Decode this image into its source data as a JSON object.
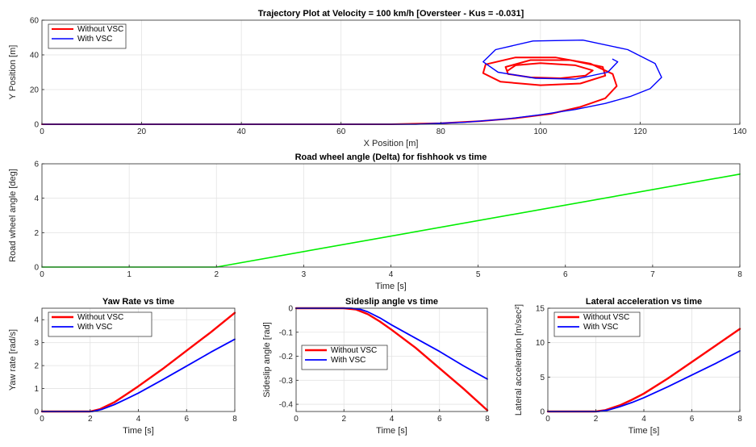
{
  "chart_data": [
    {
      "id": "traj",
      "type": "line",
      "title": "Trajectory Plot at Velocity = 100 km/h [Oversteer - Kus = -0.031]",
      "xlabel": "X Position [m]",
      "ylabel": "Y Position [m]",
      "xlim": [
        0,
        140
      ],
      "ylim": [
        0,
        60
      ],
      "xticks": [
        0,
        20,
        40,
        60,
        80,
        100,
        120,
        140
      ],
      "yticks": [
        0,
        20,
        40,
        60
      ],
      "grid": true,
      "legend": {
        "position": "top-left",
        "box": true
      },
      "series": [
        {
          "name": "Without VSC",
          "color": "#ff0000",
          "points": [
            [
              0,
              0
            ],
            [
              70,
              0
            ],
            [
              80,
              0.6
            ],
            [
              88,
              1.8
            ],
            [
              95,
              3.5
            ],
            [
              102,
              6
            ],
            [
              108,
              10
            ],
            [
              113,
              15
            ],
            [
              115.3,
              22
            ],
            [
              114.5,
              29
            ],
            [
              110,
              35
            ],
            [
              103,
              38.5
            ],
            [
              95,
              38.5
            ],
            [
              89,
              34.5
            ],
            [
              88.5,
              29.5
            ],
            [
              92,
              24.5
            ],
            [
              100,
              22.5
            ],
            [
              108,
              23.5
            ],
            [
              113,
              28
            ],
            [
              112.5,
              33
            ],
            [
              106,
              37
            ],
            [
              98,
              37
            ],
            [
              93,
              33
            ],
            [
              93.5,
              29
            ],
            [
              98,
              27
            ],
            [
              104,
              26.5
            ],
            [
              109,
              28
            ],
            [
              110.5,
              31
            ],
            [
              107,
              34
            ],
            [
              100,
              35.2
            ],
            [
              95,
              34
            ],
            [
              93.5,
              31
            ]
          ]
        },
        {
          "name": "With VSC",
          "color": "#0000ff",
          "points": [
            [
              0,
              0
            ],
            [
              75,
              0
            ],
            [
              85,
              1.2
            ],
            [
              93,
              3
            ],
            [
              100,
              5.5
            ],
            [
              107,
              8.5
            ],
            [
              113,
              12
            ],
            [
              118,
              16
            ],
            [
              122,
              20.5
            ],
            [
              124.3,
              27
            ],
            [
              123,
              35
            ],
            [
              117.5,
              43
            ],
            [
              108.5,
              48.5
            ],
            [
              98.5,
              48
            ],
            [
              91,
              43
            ],
            [
              88.5,
              36
            ],
            [
              91.5,
              30
            ],
            [
              99,
              26.5
            ],
            [
              107,
              26
            ],
            [
              113.5,
              30
            ],
            [
              115.5,
              36
            ],
            [
              114.5,
              37.5
            ]
          ]
        }
      ]
    },
    {
      "id": "delta",
      "type": "line",
      "title": "Road wheel angle (Delta) for fishhook vs time",
      "xlabel": "Time [s]",
      "ylabel": "Road wheel angle [deg]",
      "xlim": [
        0,
        8
      ],
      "ylim": [
        0,
        6
      ],
      "xticks": [
        0,
        1,
        2,
        3,
        4,
        5,
        6,
        7,
        8
      ],
      "yticks": [
        0,
        2,
        4,
        6
      ],
      "grid": true,
      "series": [
        {
          "color": "#00ee00",
          "points": [
            [
              0,
              0
            ],
            [
              2,
              0
            ],
            [
              8,
              5.4
            ]
          ]
        }
      ]
    },
    {
      "id": "yaw",
      "type": "line",
      "title": "Yaw Rate vs time",
      "xlabel": "Time [s]",
      "ylabel": "Yaw rate [rad/s]",
      "xlim": [
        0,
        8
      ],
      "ylim": [
        0,
        4.5
      ],
      "xticks": [
        0,
        2,
        4,
        6,
        8
      ],
      "yticks": [
        0,
        1,
        2,
        3,
        4
      ],
      "grid": true,
      "legend": {
        "position": "top-left",
        "box": true
      },
      "series": [
        {
          "name": "Without VSC",
          "color": "#ff0000",
          "points": [
            [
              0,
              0
            ],
            [
              2,
              0
            ],
            [
              2.4,
              0.1
            ],
            [
              3,
              0.4
            ],
            [
              3.5,
              0.75
            ],
            [
              4,
              1.1
            ],
            [
              5,
              1.85
            ],
            [
              6,
              2.65
            ],
            [
              7,
              3.45
            ],
            [
              8,
              4.3
            ]
          ]
        },
        {
          "name": "With VSC",
          "color": "#0000ff",
          "points": [
            [
              0,
              0
            ],
            [
              2.1,
              0
            ],
            [
              2.5,
              0.1
            ],
            [
              3,
              0.3
            ],
            [
              3.5,
              0.55
            ],
            [
              4,
              0.8
            ],
            [
              5,
              1.38
            ],
            [
              6,
              1.98
            ],
            [
              7,
              2.58
            ],
            [
              8,
              3.15
            ]
          ]
        }
      ]
    },
    {
      "id": "sideslip",
      "type": "line",
      "title": "Sideslip angle vs time",
      "xlabel": "Time [s]",
      "ylabel": "Sideslip angle [rad]",
      "xlim": [
        0,
        8
      ],
      "ylim": [
        -0.43,
        0
      ],
      "xticks": [
        0,
        2,
        4,
        6,
        8
      ],
      "yticks": [
        0,
        -0.1,
        -0.2,
        -0.3,
        -0.4
      ],
      "ytickLabels": [
        "0",
        "-0.1",
        "-0.2",
        "-0.3",
        "-0.4"
      ],
      "grid": true,
      "legend": {
        "position": "bottom-left",
        "box": true
      },
      "series": [
        {
          "name": "Without VSC",
          "color": "#ff0000",
          "points": [
            [
              0,
              0
            ],
            [
              2,
              0
            ],
            [
              2.5,
              -0.005
            ],
            [
              3,
              -0.025
            ],
            [
              3.5,
              -0.055
            ],
            [
              4,
              -0.09
            ],
            [
              5,
              -0.165
            ],
            [
              6,
              -0.25
            ],
            [
              7,
              -0.335
            ],
            [
              8,
              -0.425
            ]
          ]
        },
        {
          "name": "With VSC",
          "color": "#0000ff",
          "points": [
            [
              0,
              0
            ],
            [
              2.3,
              0
            ],
            [
              2.7,
              -0.005
            ],
            [
              3,
              -0.015
            ],
            [
              3.5,
              -0.04
            ],
            [
              4,
              -0.07
            ],
            [
              5,
              -0.125
            ],
            [
              6,
              -0.18
            ],
            [
              7,
              -0.24
            ],
            [
              8,
              -0.295
            ]
          ]
        }
      ]
    },
    {
      "id": "lat",
      "type": "line",
      "title": "Lateral acceleration vs time",
      "xlabel": "Time [s]",
      "ylabel": "Lateral acceleration [m/sec²]",
      "xlim": [
        0,
        8
      ],
      "ylim": [
        0,
        15
      ],
      "xticks": [
        0,
        2,
        4,
        6,
        8
      ],
      "yticks": [
        0,
        5,
        10,
        15
      ],
      "grid": true,
      "legend": {
        "position": "top-left",
        "box": true
      },
      "series": [
        {
          "name": "Without VSC",
          "color": "#ff0000",
          "points": [
            [
              0,
              0
            ],
            [
              2,
              0
            ],
            [
              2.4,
              0.2
            ],
            [
              3,
              0.9
            ],
            [
              3.5,
              1.7
            ],
            [
              4,
              2.6
            ],
            [
              5,
              4.8
            ],
            [
              6,
              7.2
            ],
            [
              7,
              9.6
            ],
            [
              8,
              12
            ]
          ]
        },
        {
          "name": "With VSC",
          "color": "#0000ff",
          "points": [
            [
              0,
              0
            ],
            [
              2.1,
              0
            ],
            [
              2.5,
              0.2
            ],
            [
              3,
              0.7
            ],
            [
              3.5,
              1.3
            ],
            [
              4,
              2.0
            ],
            [
              5,
              3.6
            ],
            [
              6,
              5.3
            ],
            [
              7,
              7.0
            ],
            [
              8,
              8.8
            ]
          ]
        }
      ]
    }
  ]
}
